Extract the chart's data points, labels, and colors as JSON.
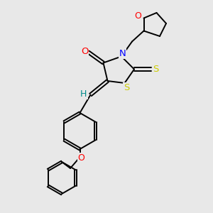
{
  "background_color": "#e8e8e8",
  "bond_color": "#000000",
  "atom_colors": {
    "O": "#ff0000",
    "N": "#0000ff",
    "S": "#cccc00",
    "H": "#008b8b",
    "C": "#000000"
  },
  "figsize": [
    3.0,
    3.0
  ],
  "dpi": 100
}
